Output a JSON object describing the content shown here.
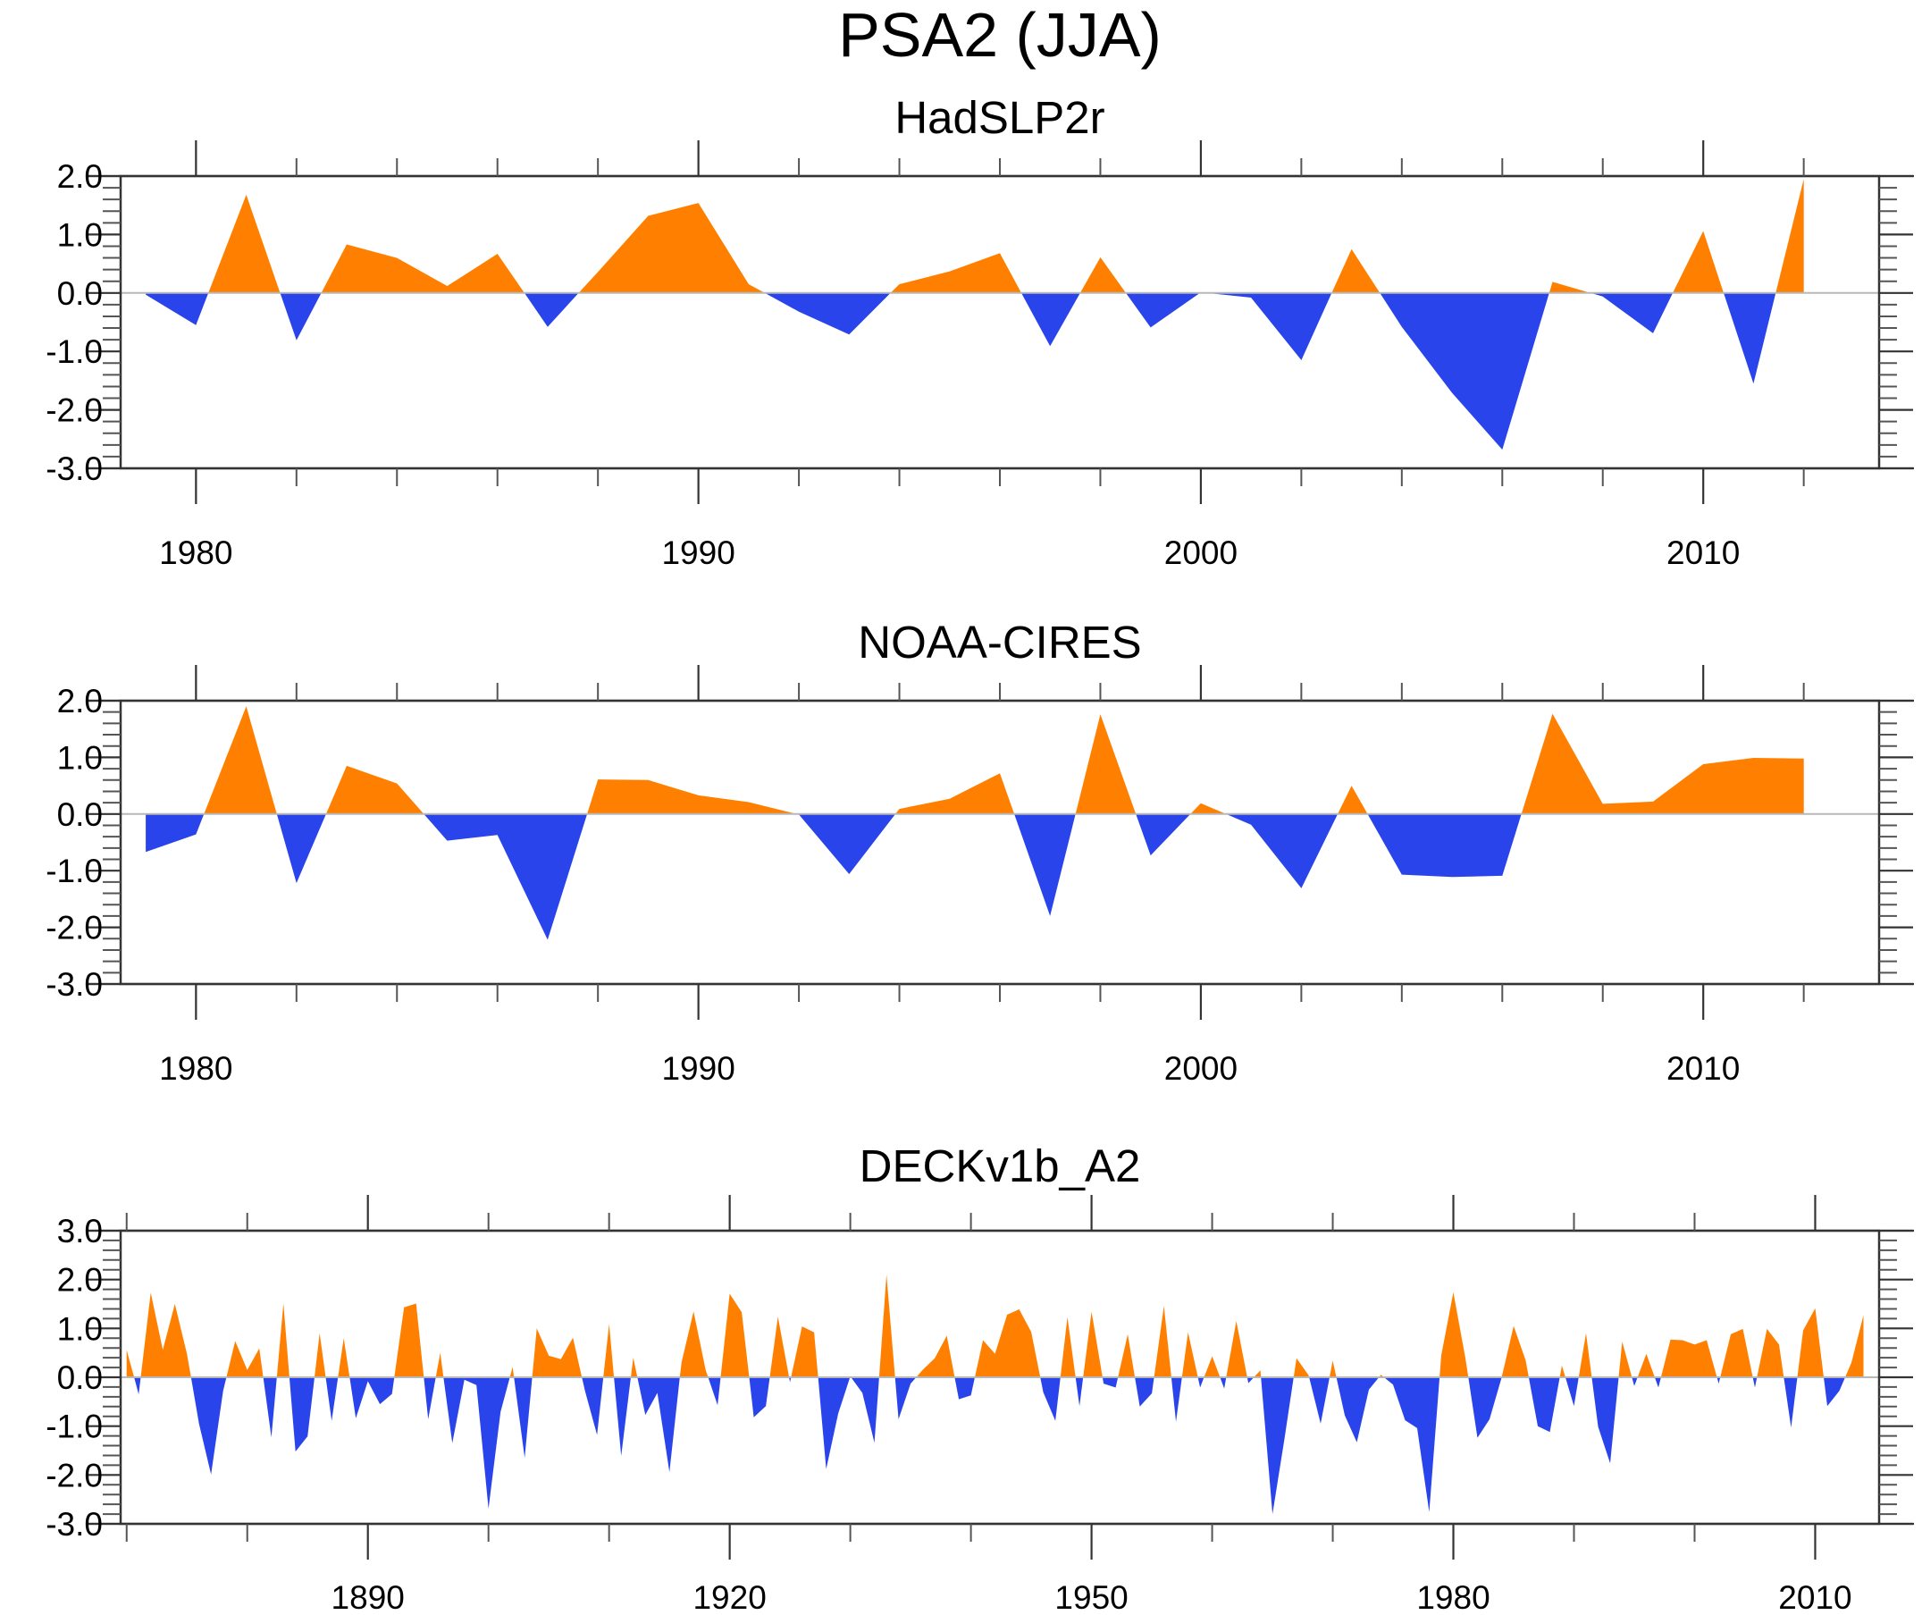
{
  "figure": {
    "title": "PSA2 (JJA)",
    "colors": {
      "positive": "#FF8000",
      "negative": "#2A44EC",
      "zero_line": "#B8B8B8",
      "axis": "#333333"
    }
  },
  "chart_data": [
    {
      "type": "area",
      "title": "HadSLP2r",
      "xlabel": "",
      "ylabel": "",
      "xlim": [
        1978.5,
        2013.5
      ],
      "ylim": [
        -3.0,
        2.0
      ],
      "x_major_ticks": [
        1980,
        1990,
        2000,
        2010
      ],
      "x_tick_labels": [
        "1980",
        "1990",
        "2000",
        "2010"
      ],
      "x_minor_step": 2,
      "y_ticks": [
        2.0,
        1.0,
        0.0,
        -1.0,
        -2.0,
        -3.0
      ],
      "y_tick_labels": [
        "2.0",
        "1.0",
        "0.0",
        "-1.0",
        "-2.0",
        "-3.0"
      ],
      "y_minor_step": 0.2,
      "grid": false,
      "legend": "none",
      "fill": "orange above zero, blue below zero",
      "x_start": 1979,
      "values": [
        -0.03,
        -0.55,
        1.68,
        -0.81,
        0.83,
        0.6,
        0.12,
        0.67,
        -0.58,
        0.36,
        1.32,
        1.54,
        0.15,
        -0.32,
        -0.71,
        0.15,
        0.37,
        0.68,
        -0.91,
        0.61,
        -0.59,
        0.01,
        -0.08,
        -1.15,
        0.75,
        -0.58,
        -1.71,
        -2.68,
        0.19,
        -0.06,
        -0.69,
        1.06,
        -1.55,
        1.95
      ]
    },
    {
      "type": "area",
      "title": "NOAA-CIRES",
      "xlabel": "",
      "ylabel": "",
      "xlim": [
        1978.5,
        2013.5
      ],
      "ylim": [
        -3.0,
        2.0
      ],
      "x_major_ticks": [
        1980,
        1990,
        2000,
        2010
      ],
      "x_tick_labels": [
        "1980",
        "1990",
        "2000",
        "2010"
      ],
      "x_minor_step": 2,
      "y_ticks": [
        2.0,
        1.0,
        0.0,
        -1.0,
        -2.0,
        -3.0
      ],
      "y_tick_labels": [
        "2.0",
        "1.0",
        "0.0",
        "-1.0",
        "-2.0",
        "-3.0"
      ],
      "y_minor_step": 0.2,
      "grid": false,
      "legend": "none",
      "fill": "orange above zero, blue below zero",
      "x_start": 1979,
      "values": [
        -0.67,
        -0.36,
        1.9,
        -1.22,
        0.85,
        0.54,
        -0.47,
        -0.37,
        -2.22,
        0.61,
        0.6,
        0.33,
        0.21,
        -0.01,
        -1.06,
        0.09,
        0.27,
        0.72,
        -1.8,
        1.76,
        -0.73,
        0.19,
        -0.19,
        -1.31,
        0.5,
        -1.07,
        -1.11,
        -1.09,
        1.77,
        0.18,
        0.22,
        0.88,
        0.99,
        0.98
      ]
    },
    {
      "type": "area",
      "title": "DECKv1b_A2",
      "xlabel": "",
      "ylabel": "",
      "xlim": [
        1869.5,
        2015.3
      ],
      "ylim": [
        -3.0,
        3.0
      ],
      "x_major_ticks": [
        1890,
        1920,
        1950,
        1980,
        2010
      ],
      "x_tick_labels": [
        "1890",
        "1920",
        "1950",
        "1980",
        "2010"
      ],
      "x_minor_step": 10,
      "y_ticks": [
        3.0,
        2.0,
        1.0,
        0.0,
        -1.0,
        -2.0,
        -3.0
      ],
      "y_tick_labels": [
        "3.0",
        "2.0",
        "1.0",
        "0.0",
        "-1.0",
        "-2.0",
        "-3.0"
      ],
      "y_minor_step": 0.2,
      "grid": false,
      "legend": "none",
      "fill": "orange above zero, blue below zero",
      "x_start": 1870,
      "values": [
        0.56,
        -0.35,
        1.73,
        0.56,
        1.5,
        0.48,
        -0.95,
        -1.99,
        -0.28,
        0.74,
        0.15,
        0.59,
        -1.23,
        1.51,
        -1.52,
        -1.21,
        0.9,
        -0.89,
        0.8,
        -0.84,
        -0.08,
        -0.55,
        -0.34,
        1.43,
        1.51,
        -0.86,
        0.5,
        -1.35,
        -0.05,
        -0.16,
        -2.69,
        -0.71,
        0.21,
        -1.65,
        1.0,
        0.44,
        0.37,
        0.81,
        -0.28,
        -1.18,
        1.09,
        -1.61,
        0.4,
        -0.77,
        -0.32,
        -1.94,
        0.3,
        1.35,
        0.15,
        -0.57,
        1.71,
        1.33,
        -0.82,
        -0.59,
        1.24,
        -0.1,
        1.04,
        0.92,
        -1.88,
        -0.74,
        0.02,
        -0.32,
        -1.34,
        2.1,
        -0.86,
        -0.13,
        0.15,
        0.39,
        0.85,
        -0.45,
        -0.37,
        0.76,
        0.48,
        1.28,
        1.39,
        0.93,
        -0.31,
        -0.89,
        1.23,
        -0.59,
        1.34,
        -0.13,
        -0.21,
        0.88,
        -0.6,
        -0.33,
        1.46,
        -0.91,
        0.92,
        -0.21,
        0.43,
        -0.23,
        1.15,
        -0.12,
        0.14,
        -2.8,
        -1.25,
        0.39,
        0.04,
        -0.95,
        0.34,
        -0.78,
        -1.33,
        -0.25,
        0.05,
        -0.15,
        -0.88,
        -1.04,
        -2.76,
        0.45,
        1.74,
        0.39,
        -1.24,
        -0.86,
        -0.01,
        1.05,
        0.34,
        -1.0,
        -1.12,
        0.24,
        -0.59,
        0.9,
        -1.01,
        -1.76,
        0.73,
        -0.18,
        0.48,
        -0.21,
        0.77,
        0.76,
        0.67,
        0.76,
        -0.13,
        0.88,
        0.99,
        -0.21,
        0.99,
        0.67,
        -1.03,
        0.96,
        1.41,
        -0.59,
        -0.28,
        0.3,
        1.27
      ]
    }
  ]
}
